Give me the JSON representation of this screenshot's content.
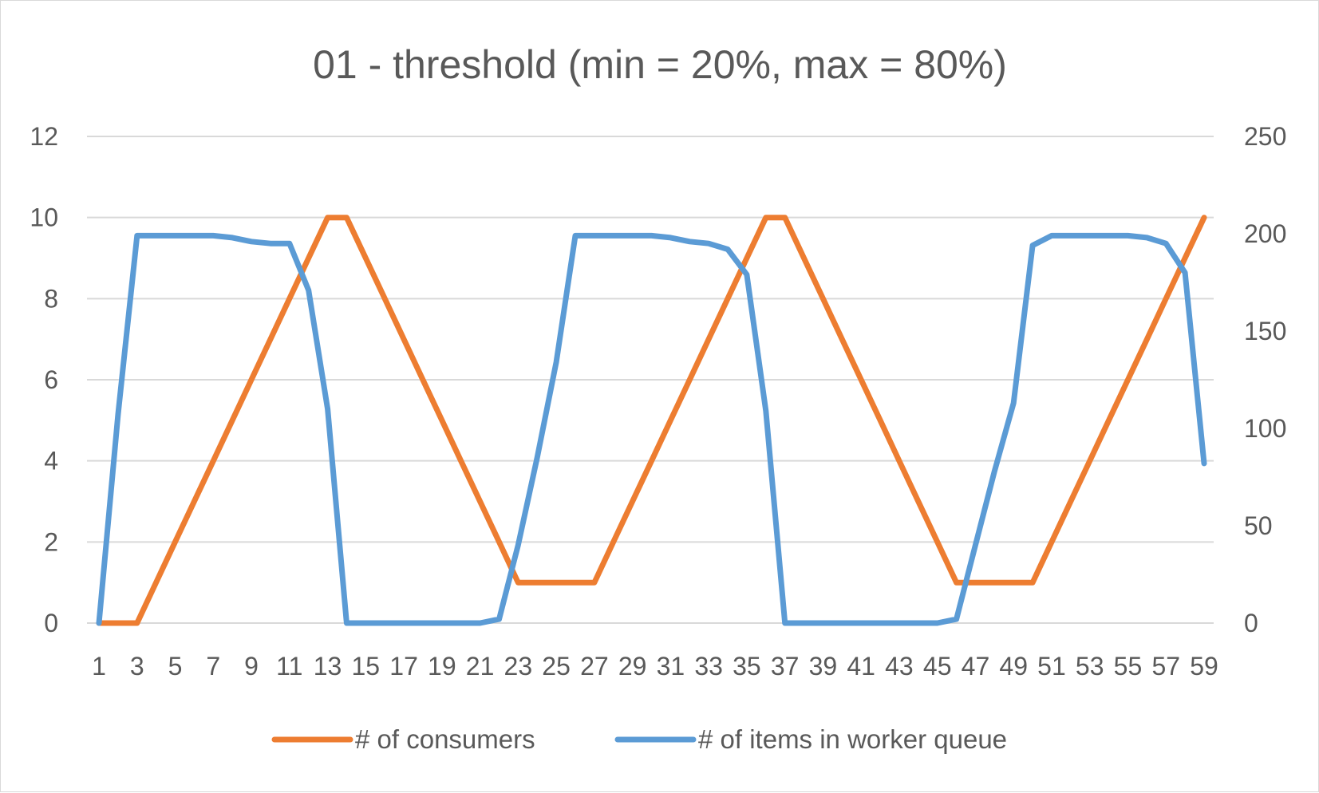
{
  "chart_data": {
    "type": "line",
    "title": "01 - threshold (min = 20%, max = 80%)",
    "x": [
      1,
      2,
      3,
      4,
      5,
      6,
      7,
      8,
      9,
      10,
      11,
      12,
      13,
      14,
      15,
      16,
      17,
      18,
      19,
      20,
      21,
      22,
      23,
      24,
      25,
      26,
      27,
      28,
      29,
      30,
      31,
      32,
      33,
      34,
      35,
      36,
      37,
      38,
      39,
      40,
      41,
      42,
      43,
      44,
      45,
      46,
      47,
      48,
      49,
      50,
      51,
      52,
      53,
      54,
      55,
      56,
      57,
      58,
      59
    ],
    "x_tick_labels": [
      "1",
      "3",
      "5",
      "7",
      "9",
      "11",
      "13",
      "15",
      "17",
      "19",
      "21",
      "23",
      "25",
      "27",
      "29",
      "31",
      "33",
      "35",
      "37",
      "39",
      "41",
      "43",
      "45",
      "47",
      "49",
      "51",
      "53",
      "55",
      "57",
      "59"
    ],
    "y_left": {
      "range": [
        0,
        12
      ],
      "ticks": [
        "0",
        "2",
        "4",
        "6",
        "8",
        "10",
        "12"
      ]
    },
    "y_right": {
      "range": [
        0,
        250
      ],
      "ticks": [
        "0",
        "50",
        "100",
        "150",
        "200",
        "250"
      ]
    },
    "grid": true,
    "legend_position": "bottom",
    "series": [
      {
        "name": "# of consumers",
        "axis": "left",
        "color": "#ED7D31",
        "values": [
          0,
          0,
          0,
          1,
          2,
          3,
          4,
          5,
          6,
          7,
          8,
          9,
          10,
          10,
          9,
          8,
          7,
          6,
          5,
          4,
          3,
          2,
          1,
          1,
          1,
          1,
          1,
          2,
          3,
          4,
          5,
          6,
          7,
          8,
          9,
          10,
          10,
          9,
          8,
          7,
          6,
          5,
          4,
          3,
          2,
          1,
          1,
          1,
          1,
          1,
          2,
          3,
          4,
          5,
          6,
          7,
          8,
          9,
          10
        ]
      },
      {
        "name": "# of items in worker queue",
        "axis": "right",
        "color": "#5B9BD5",
        "values": [
          0,
          107,
          199,
          199,
          199,
          199,
          199,
          198,
          196,
          195,
          195,
          171,
          110,
          0,
          0,
          0,
          0,
          0,
          0,
          0,
          0,
          2,
          40,
          85,
          134,
          199,
          199,
          199,
          199,
          199,
          198,
          196,
          195,
          192,
          179,
          109,
          0,
          0,
          0,
          0,
          0,
          0,
          0,
          0,
          0,
          2,
          40,
          78,
          113,
          194,
          199,
          199,
          199,
          199,
          199,
          198,
          195,
          180,
          82
        ]
      }
    ]
  }
}
